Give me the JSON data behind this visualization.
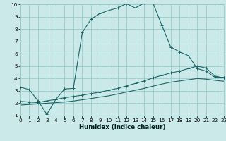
{
  "xlabel": "Humidex (Indice chaleur)",
  "xlim": [
    0,
    23
  ],
  "ylim": [
    1,
    10
  ],
  "xticks": [
    0,
    1,
    2,
    3,
    4,
    5,
    6,
    7,
    8,
    9,
    10,
    11,
    12,
    13,
    14,
    15,
    16,
    17,
    18,
    19,
    20,
    21,
    22,
    23
  ],
  "yticks": [
    1,
    2,
    3,
    4,
    5,
    6,
    7,
    8,
    9,
    10
  ],
  "bg_color": "#cce9e9",
  "grid_color": "#99cccc",
  "line_color": "#1a6666",
  "line1_x": [
    0,
    1,
    2,
    3,
    4,
    5,
    6,
    7,
    8,
    9,
    10,
    11,
    12,
    13,
    14,
    15,
    16,
    17,
    18,
    19,
    20,
    21,
    22,
    23
  ],
  "line1_y": [
    3.3,
    3.1,
    2.2,
    1.1,
    2.3,
    3.15,
    3.2,
    7.7,
    8.8,
    9.25,
    9.5,
    9.7,
    10.05,
    9.7,
    10.1,
    10.1,
    8.3,
    6.55,
    6.15,
    5.85,
    4.8,
    4.6,
    4.1,
    4.1
  ],
  "line2_x": [
    0,
    1,
    2,
    3,
    4,
    5,
    6,
    7,
    8,
    9,
    10,
    11,
    12,
    13,
    14,
    15,
    16,
    17,
    18,
    19,
    20,
    21,
    22,
    23
  ],
  "line2_y": [
    2.15,
    2.1,
    2.05,
    2.2,
    2.3,
    2.45,
    2.55,
    2.65,
    2.78,
    2.9,
    3.05,
    3.2,
    3.4,
    3.6,
    3.8,
    4.05,
    4.25,
    4.45,
    4.6,
    4.8,
    5.0,
    4.85,
    4.2,
    4.05
  ],
  "line3_x": [
    0,
    1,
    2,
    3,
    4,
    5,
    6,
    7,
    8,
    9,
    10,
    11,
    12,
    13,
    14,
    15,
    16,
    17,
    18,
    19,
    20,
    21,
    22,
    23
  ],
  "line3_y": [
    1.85,
    1.9,
    1.95,
    2.0,
    2.05,
    2.1,
    2.18,
    2.28,
    2.38,
    2.5,
    2.6,
    2.75,
    2.9,
    3.05,
    3.2,
    3.38,
    3.55,
    3.7,
    3.8,
    3.9,
    4.0,
    3.95,
    3.85,
    3.78
  ]
}
